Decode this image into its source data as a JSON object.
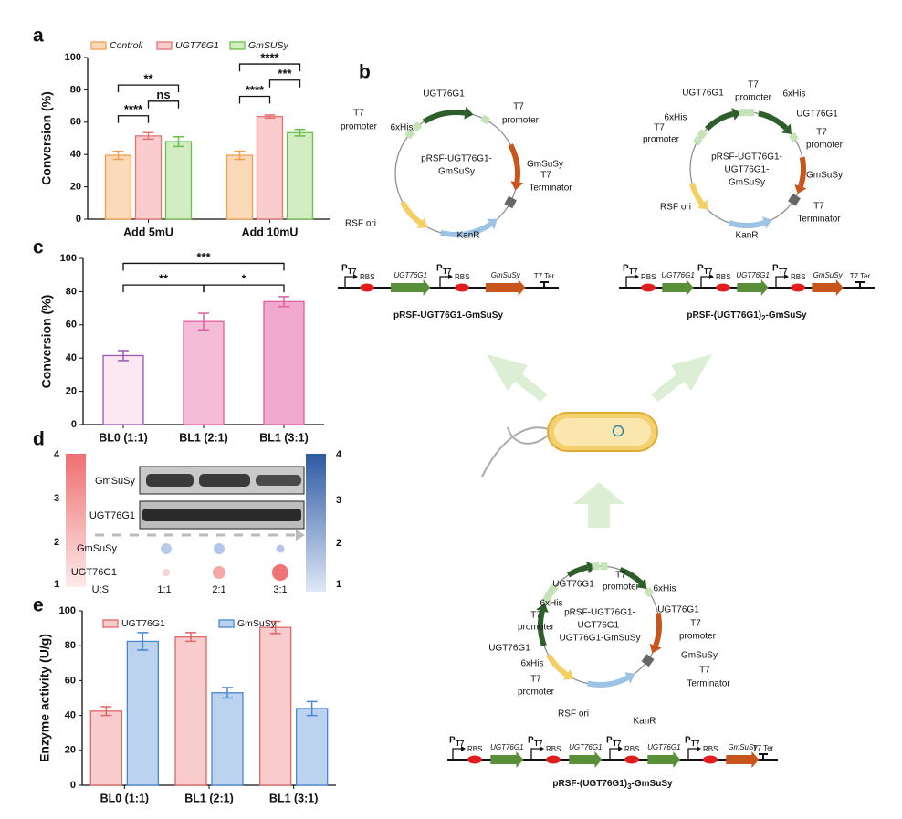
{
  "chart_data": [
    {
      "type": "bar",
      "panel": "a",
      "ylabel": "Conversion (%)",
      "categories": [
        "Add 5mU",
        "Add 10mU"
      ],
      "series": [
        {
          "name": "Controll",
          "color": "#f0a050",
          "fill": "#fcd9b8",
          "values": [
            39.5,
            39.5
          ],
          "errors": [
            2.5,
            2.5
          ]
        },
        {
          "name": "UGT76G1",
          "color": "#e57373",
          "fill": "#f9cdcd",
          "values": [
            51.5,
            63.5
          ],
          "errors": [
            2,
            1
          ]
        },
        {
          "name": "GmSUSy",
          "color": "#6cbf4a",
          "fill": "#d2ecc4",
          "values": [
            48,
            53.5
          ],
          "errors": [
            3,
            2
          ]
        }
      ],
      "ylim": [
        0,
        100
      ],
      "yticks": [
        0,
        20,
        40,
        60,
        80,
        100
      ],
      "annotations": [
        "****",
        "ns",
        "**",
        "****",
        "***",
        "****"
      ]
    },
    {
      "type": "bar",
      "panel": "c",
      "ylabel": "Conversion (%)",
      "categories": [
        "BL0 (1:1)",
        "BL1 (2:1)",
        "BL1 (3:1)"
      ],
      "values": [
        41.5,
        62,
        74
      ],
      "errors": [
        3,
        5,
        3
      ],
      "colors": [
        "#9b59b6",
        "#e0609f",
        "#e0609f"
      ],
      "fills": [
        "#fbe8f2",
        "#f5bcd8",
        "#f2a9cf"
      ],
      "ylim": [
        0,
        100
      ],
      "yticks": [
        0,
        20,
        40,
        60,
        80,
        100
      ],
      "annotations": [
        "**",
        "*",
        "***"
      ]
    },
    {
      "type": "bar",
      "panel": "e",
      "ylabel": "Enzyme activity (U/g)",
      "categories": [
        "BL0 (1:1)",
        "BL1 (2:1)",
        "BL1 (3:1)"
      ],
      "series": [
        {
          "name": "UGT76G1",
          "color": "#e06666",
          "fill": "#f8cccc",
          "values": [
            42.5,
            85,
            90.5
          ],
          "errors": [
            2.5,
            2.5,
            3.5
          ]
        },
        {
          "name": "GmSuSy",
          "color": "#4a86d4",
          "fill": "#bcd3f0",
          "values": [
            82.5,
            53,
            44
          ],
          "errors": [
            5,
            3,
            4
          ]
        }
      ],
      "ylim": [
        0,
        100
      ],
      "yticks": [
        0,
        20,
        40,
        60,
        80,
        100
      ]
    }
  ],
  "diagram": {
    "panel": "b",
    "plasmids": [
      {
        "center": [
          "pRSF-UGT76G1-",
          "GmSuSy"
        ],
        "labels": [
          "UGT76G1",
          "6xHis",
          "T7",
          "promoter",
          "T7",
          "promoter",
          "GmSuSy",
          "T7",
          "Terminator",
          "RSF ori",
          "KanR"
        ]
      },
      {
        "center": [
          "pRSF-UGT76G1-",
          "UGT76G1-",
          "GmSuSy"
        ],
        "labels": [
          "T7",
          "promoter",
          "UGT76G1",
          "6xHis",
          "6xHis",
          "T7",
          "promoter",
          "UGT76G1",
          "T7",
          "promoter",
          "GmSuSy",
          "T7",
          "Terminator",
          "RSF ori",
          "KanR"
        ]
      },
      {
        "center": [
          "pRSF-UGT76G1-",
          "UGT76G1-",
          "UGT76G1-GmSuSy"
        ],
        "labels": [
          "T7",
          "promoter",
          "UGT76G1",
          "6xHis",
          "6xHis",
          "UGT76G1",
          "T7",
          "promoter",
          "T7",
          "promoter",
          "UGT76G1",
          "GmSuSy",
          "6xHis",
          "T7",
          "promoter",
          "T7",
          "Terminator",
          "RSF ori",
          "KanR"
        ]
      }
    ],
    "constructs": [
      {
        "name_parts": [
          "pRSF-UGT76G1-GmSuSy"
        ],
        "terminator": "T7 Ter",
        "units": [
          {
            "promoter": "P",
            "promoter_sub": "T7",
            "rbs": "RBS",
            "gene": "UGT76G1"
          },
          {
            "promoter": "P",
            "promoter_sub": "T7",
            "rbs": "RBS",
            "gene": "GmSuSy"
          }
        ]
      },
      {
        "name_parts": [
          "pRSF-(UGT76G1)",
          "2",
          "-GmSuSy"
        ],
        "terminator": "T7 Ter",
        "units": [
          {
            "promoter": "P",
            "promoter_sub": "T7",
            "rbs": "RBS",
            "gene": "UGT76G1"
          },
          {
            "promoter": "P",
            "promoter_sub": "T7",
            "rbs": "RBS",
            "gene": "UGT76G1"
          },
          {
            "promoter": "P",
            "promoter_sub": "T7",
            "rbs": "RBS",
            "gene": "GmSuSy"
          }
        ]
      },
      {
        "name_parts": [
          "pRSF-(UGT76G1)",
          "3",
          "-GmSuSy"
        ],
        "terminator": "T7 Ter",
        "units": [
          {
            "promoter": "P",
            "promoter_sub": "T7",
            "rbs": "RBS",
            "gene": "UGT76G1"
          },
          {
            "promoter": "P",
            "promoter_sub": "T7",
            "rbs": "RBS",
            "gene": "UGT76G1"
          },
          {
            "promoter": "P",
            "promoter_sub": "T7",
            "rbs": "RBS",
            "gene": "UGT76G1"
          },
          {
            "promoter": "P",
            "promoter_sub": "T7",
            "rbs": "RBS",
            "gene": "GmSuSy"
          }
        ]
      }
    ]
  },
  "blot": {
    "panel": "d",
    "bands": [
      "GmSuSy",
      "UGT76G1"
    ],
    "rows": [
      "GmSuSy",
      "UGT76G1",
      "U:S"
    ],
    "ratios": [
      "1:1",
      "2:1",
      "3:1"
    ],
    "left_scale": [
      4,
      3,
      2,
      1
    ],
    "right_scale": [
      4,
      3,
      2,
      1
    ]
  }
}
